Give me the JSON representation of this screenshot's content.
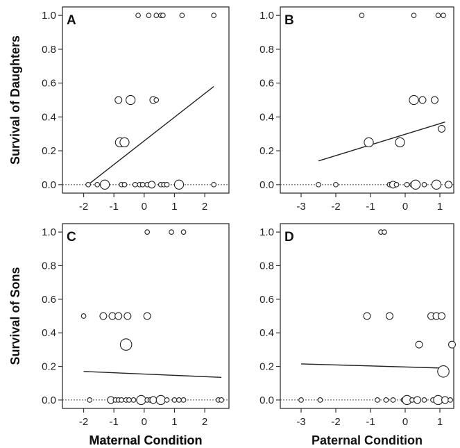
{
  "chart_data": [
    {
      "type": "scatter",
      "panel": "A",
      "xlabel": "Maternal Condition",
      "ylabel": "Survival of Daughters",
      "xlim": [
        -2.7,
        2.8
      ],
      "ylim": [
        -0.05,
        1.05
      ],
      "xticks": [
        -2,
        -1,
        0,
        1,
        2
      ],
      "yticks": [
        "0.0",
        "0.2",
        "0.4",
        "0.6",
        "0.8",
        "1.0"
      ],
      "points": [
        {
          "x": -0.2,
          "y": 1.0,
          "size": 1
        },
        {
          "x": 0.15,
          "y": 1.0,
          "size": 1
        },
        {
          "x": 0.4,
          "y": 1.0,
          "size": 1
        },
        {
          "x": 0.55,
          "y": 1.0,
          "size": 1
        },
        {
          "x": 0.62,
          "y": 1.0,
          "size": 1
        },
        {
          "x": 1.25,
          "y": 1.0,
          "size": 1
        },
        {
          "x": 2.3,
          "y": 1.0,
          "size": 1
        },
        {
          "x": -0.85,
          "y": 0.5,
          "size": 1.5
        },
        {
          "x": -0.45,
          "y": 0.5,
          "size": 2
        },
        {
          "x": 0.3,
          "y": 0.5,
          "size": 1.5
        },
        {
          "x": 0.4,
          "y": 0.5,
          "size": 1
        },
        {
          "x": -0.8,
          "y": 0.25,
          "size": 2
        },
        {
          "x": -0.65,
          "y": 0.25,
          "size": 2
        },
        {
          "x": -1.85,
          "y": 0.0,
          "size": 1
        },
        {
          "x": -1.55,
          "y": 0.0,
          "size": 1
        },
        {
          "x": -1.3,
          "y": 0.0,
          "size": 2
        },
        {
          "x": -0.75,
          "y": 0.0,
          "size": 1
        },
        {
          "x": -0.65,
          "y": 0.0,
          "size": 1
        },
        {
          "x": -0.3,
          "y": 0.0,
          "size": 1
        },
        {
          "x": -0.15,
          "y": 0.0,
          "size": 1
        },
        {
          "x": -0.05,
          "y": 0.0,
          "size": 1
        },
        {
          "x": 0.1,
          "y": 0.0,
          "size": 1
        },
        {
          "x": 0.25,
          "y": 0.0,
          "size": 1.5
        },
        {
          "x": 0.55,
          "y": 0.0,
          "size": 1
        },
        {
          "x": 0.65,
          "y": 0.0,
          "size": 1
        },
        {
          "x": 0.75,
          "y": 0.0,
          "size": 1
        },
        {
          "x": 1.15,
          "y": 0.0,
          "size": 2
        },
        {
          "x": 2.3,
          "y": 0.0,
          "size": 1
        }
      ],
      "fit_line": [
        [
          -1.85,
          0.0
        ],
        [
          2.3,
          0.58
        ]
      ]
    },
    {
      "type": "scatter",
      "panel": "B",
      "xlabel": "",
      "ylabel": "",
      "xlim": [
        -3.6,
        1.4
      ],
      "ylim": [
        -0.05,
        1.05
      ],
      "xticks": [
        -3,
        -2,
        -1,
        0,
        1
      ],
      "yticks": [
        "0.0",
        "0.2",
        "0.4",
        "0.6",
        "0.8",
        "1.0"
      ],
      "points": [
        {
          "x": -1.25,
          "y": 1.0,
          "size": 1
        },
        {
          "x": 0.25,
          "y": 1.0,
          "size": 1
        },
        {
          "x": 0.95,
          "y": 1.0,
          "size": 1
        },
        {
          "x": 1.1,
          "y": 1.0,
          "size": 1
        },
        {
          "x": 0.25,
          "y": 0.5,
          "size": 2
        },
        {
          "x": 0.5,
          "y": 0.5,
          "size": 1.5
        },
        {
          "x": 0.85,
          "y": 0.5,
          "size": 1.5
        },
        {
          "x": 1.05,
          "y": 0.33,
          "size": 1.5
        },
        {
          "x": -1.05,
          "y": 0.25,
          "size": 2
        },
        {
          "x": -0.15,
          "y": 0.25,
          "size": 2
        },
        {
          "x": -2.5,
          "y": 0.0,
          "size": 1
        },
        {
          "x": -2.0,
          "y": 0.0,
          "size": 1
        },
        {
          "x": -0.45,
          "y": 0.0,
          "size": 1
        },
        {
          "x": -0.35,
          "y": 0.0,
          "size": 1.5
        },
        {
          "x": -0.25,
          "y": 0.0,
          "size": 1
        },
        {
          "x": 0.05,
          "y": 0.0,
          "size": 1
        },
        {
          "x": 0.2,
          "y": 0.0,
          "size": 1
        },
        {
          "x": 0.3,
          "y": 0.0,
          "size": 2
        },
        {
          "x": 0.55,
          "y": 0.0,
          "size": 1
        },
        {
          "x": 0.9,
          "y": 0.0,
          "size": 2
        },
        {
          "x": 1.25,
          "y": 0.0,
          "size": 1.5
        }
      ],
      "fit_line": [
        [
          -2.5,
          0.14
        ],
        [
          1.15,
          0.37
        ]
      ]
    },
    {
      "type": "scatter",
      "panel": "C",
      "xlabel": "Maternal Condition",
      "ylabel": "Survival of Sons",
      "xlim": [
        -2.7,
        2.8
      ],
      "ylim": [
        -0.05,
        1.05
      ],
      "xticks": [
        -2,
        -1,
        0,
        1,
        2
      ],
      "yticks": [
        "0.0",
        "0.2",
        "0.4",
        "0.6",
        "0.8",
        "1.0"
      ],
      "points": [
        {
          "x": 0.1,
          "y": 1.0,
          "size": 1
        },
        {
          "x": 0.9,
          "y": 1.0,
          "size": 1
        },
        {
          "x": 1.3,
          "y": 1.0,
          "size": 1
        },
        {
          "x": -2.0,
          "y": 0.5,
          "size": 1
        },
        {
          "x": -1.35,
          "y": 0.5,
          "size": 1.5
        },
        {
          "x": -1.05,
          "y": 0.5,
          "size": 1.5
        },
        {
          "x": -0.85,
          "y": 0.5,
          "size": 1.5
        },
        {
          "x": -0.55,
          "y": 0.5,
          "size": 1.5
        },
        {
          "x": 0.1,
          "y": 0.5,
          "size": 1.5
        },
        {
          "x": -0.6,
          "y": 0.33,
          "size": 2.5
        },
        {
          "x": -1.8,
          "y": 0.0,
          "size": 1
        },
        {
          "x": -1.1,
          "y": 0.0,
          "size": 1.5
        },
        {
          "x": -0.95,
          "y": 0.0,
          "size": 1
        },
        {
          "x": -0.85,
          "y": 0.0,
          "size": 1
        },
        {
          "x": -0.75,
          "y": 0.0,
          "size": 1
        },
        {
          "x": -0.6,
          "y": 0.0,
          "size": 1
        },
        {
          "x": -0.5,
          "y": 0.0,
          "size": 1
        },
        {
          "x": -0.35,
          "y": 0.0,
          "size": 1
        },
        {
          "x": -0.1,
          "y": 0.0,
          "size": 2
        },
        {
          "x": 0.1,
          "y": 0.0,
          "size": 1
        },
        {
          "x": 0.2,
          "y": 0.0,
          "size": 1
        },
        {
          "x": 0.3,
          "y": 0.0,
          "size": 1.5
        },
        {
          "x": 0.55,
          "y": 0.0,
          "size": 2
        },
        {
          "x": 0.75,
          "y": 0.0,
          "size": 1
        },
        {
          "x": 1.0,
          "y": 0.0,
          "size": 1
        },
        {
          "x": 1.15,
          "y": 0.0,
          "size": 1
        },
        {
          "x": 1.3,
          "y": 0.0,
          "size": 1
        },
        {
          "x": 2.45,
          "y": 0.0,
          "size": 1
        },
        {
          "x": 2.55,
          "y": 0.0,
          "size": 1
        }
      ],
      "fit_line": [
        [
          -2.0,
          0.17
        ],
        [
          2.55,
          0.135
        ]
      ]
    },
    {
      "type": "scatter",
      "panel": "D",
      "xlabel": "Paternal Condition",
      "ylabel": "",
      "xlim": [
        -3.6,
        1.4
      ],
      "ylim": [
        -0.05,
        1.05
      ],
      "xticks": [
        -3,
        -2,
        -1,
        0,
        1
      ],
      "yticks": [
        "0.0",
        "0.2",
        "0.4",
        "0.6",
        "0.8",
        "1.0"
      ],
      "points": [
        {
          "x": -0.7,
          "y": 1.0,
          "size": 1
        },
        {
          "x": -0.6,
          "y": 1.0,
          "size": 1
        },
        {
          "x": -1.1,
          "y": 0.5,
          "size": 1.5
        },
        {
          "x": -0.45,
          "y": 0.5,
          "size": 1.5
        },
        {
          "x": 0.75,
          "y": 0.5,
          "size": 1.5
        },
        {
          "x": 0.9,
          "y": 0.5,
          "size": 1.5
        },
        {
          "x": 1.05,
          "y": 0.5,
          "size": 1.5
        },
        {
          "x": 0.4,
          "y": 0.33,
          "size": 1.5
        },
        {
          "x": 1.35,
          "y": 0.33,
          "size": 1.5
        },
        {
          "x": 1.1,
          "y": 0.17,
          "size": 2.5
        },
        {
          "x": -3.0,
          "y": 0.0,
          "size": 1
        },
        {
          "x": -2.45,
          "y": 0.0,
          "size": 1
        },
        {
          "x": -0.8,
          "y": 0.0,
          "size": 1
        },
        {
          "x": -0.55,
          "y": 0.0,
          "size": 1
        },
        {
          "x": -0.35,
          "y": 0.0,
          "size": 1
        },
        {
          "x": -0.05,
          "y": 0.0,
          "size": 1
        },
        {
          "x": 0.05,
          "y": 0.0,
          "size": 2
        },
        {
          "x": 0.2,
          "y": 0.0,
          "size": 1
        },
        {
          "x": 0.35,
          "y": 0.0,
          "size": 1.5
        },
        {
          "x": 0.55,
          "y": 0.0,
          "size": 1
        },
        {
          "x": 0.8,
          "y": 0.0,
          "size": 1
        },
        {
          "x": 0.95,
          "y": 0.0,
          "size": 2
        },
        {
          "x": 1.15,
          "y": 0.0,
          "size": 1.5
        },
        {
          "x": 1.3,
          "y": 0.0,
          "size": 1
        }
      ],
      "fit_line": [
        [
          -3.0,
          0.215
        ],
        [
          1.1,
          0.19
        ]
      ]
    }
  ]
}
